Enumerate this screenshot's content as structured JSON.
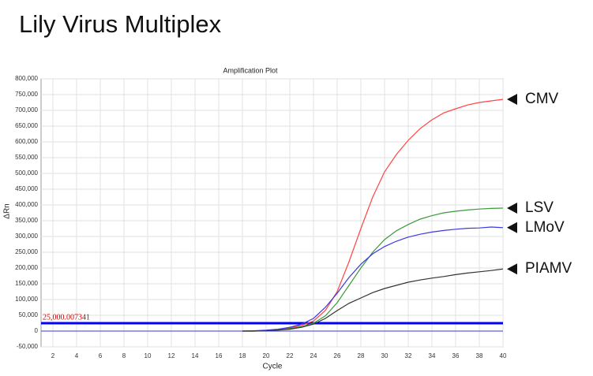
{
  "chart_data": {
    "type": "line",
    "title": "Lily Virus Multiplex",
    "subtitle": "Amplification Plot",
    "x_label": "Cycle",
    "y_label": "ΔRn",
    "x": [
      18,
      19,
      20,
      21,
      22,
      23,
      24,
      25,
      26,
      27,
      28,
      29,
      30,
      31,
      32,
      33,
      34,
      35,
      36,
      37,
      38,
      39,
      40
    ],
    "series": [
      {
        "name": "CMV",
        "color": "#ff4444",
        "values": [
          0,
          0,
          2000,
          5000,
          10000,
          18000,
          32000,
          65000,
          125000,
          220000,
          325000,
          425000,
          505000,
          560000,
          605000,
          642000,
          670000,
          692000,
          705000,
          717000,
          725000,
          730000,
          735000
        ]
      },
      {
        "name": "LSV",
        "color": "#3c9a3c",
        "values": [
          0,
          0,
          2000,
          4000,
          8000,
          14000,
          25000,
          48000,
          90000,
          145000,
          200000,
          250000,
          290000,
          318000,
          338000,
          355000,
          366000,
          375000,
          380000,
          384000,
          387000,
          389000,
          390000
        ]
      },
      {
        "name": "LMoV",
        "color": "#3a3adf",
        "values": [
          0,
          1000,
          3000,
          6000,
          12000,
          22000,
          40000,
          75000,
          120000,
          170000,
          212000,
          245000,
          268000,
          285000,
          298000,
          307000,
          314000,
          319000,
          323000,
          326000,
          327000,
          330000,
          328000
        ]
      },
      {
        "name": "PIAMV",
        "color": "#333333",
        "values": [
          0,
          0,
          1000,
          3000,
          6000,
          12000,
          22000,
          40000,
          65000,
          88000,
          105000,
          122000,
          135000,
          145000,
          155000,
          162000,
          168000,
          173000,
          179000,
          184000,
          188000,
          192000,
          197000
        ]
      }
    ],
    "threshold": {
      "value": 25000.007341,
      "label": "25,000.007341",
      "color": "#0000ff"
    },
    "xlim": [
      1,
      40
    ],
    "xticks": [
      2,
      4,
      6,
      8,
      10,
      12,
      14,
      16,
      18,
      20,
      22,
      24,
      26,
      28,
      30,
      32,
      34,
      36,
      38,
      40
    ],
    "ylim": [
      -50000,
      800000
    ],
    "yticks": [
      {
        "value": -50000,
        "label": "-50,000"
      },
      0,
      {
        "value": 50000,
        "label": "50,000"
      },
      {
        "value": 100000,
        "label": "100,000"
      },
      {
        "value": 150000,
        "label": "150,000"
      },
      {
        "value": 200000,
        "label": "200,000"
      },
      {
        "value": 250000,
        "label": "250,000"
      },
      {
        "value": 300000,
        "label": "300,000"
      },
      {
        "value": 350000,
        "label": "350,000"
      },
      {
        "value": 400000,
        "label": "400,000"
      },
      {
        "value": 450000,
        "label": "450,000"
      },
      {
        "value": 500000,
        "label": "500,000"
      },
      {
        "value": 550000,
        "label": "550,000"
      },
      {
        "value": 600000,
        "label": "600,000"
      },
      {
        "value": 650000,
        "label": "650,000"
      },
      {
        "value": 700000,
        "label": "700,000"
      },
      {
        "value": 750000,
        "label": "750,000"
      },
      {
        "value": 800000,
        "label": "800,000"
      }
    ],
    "grid": true
  }
}
